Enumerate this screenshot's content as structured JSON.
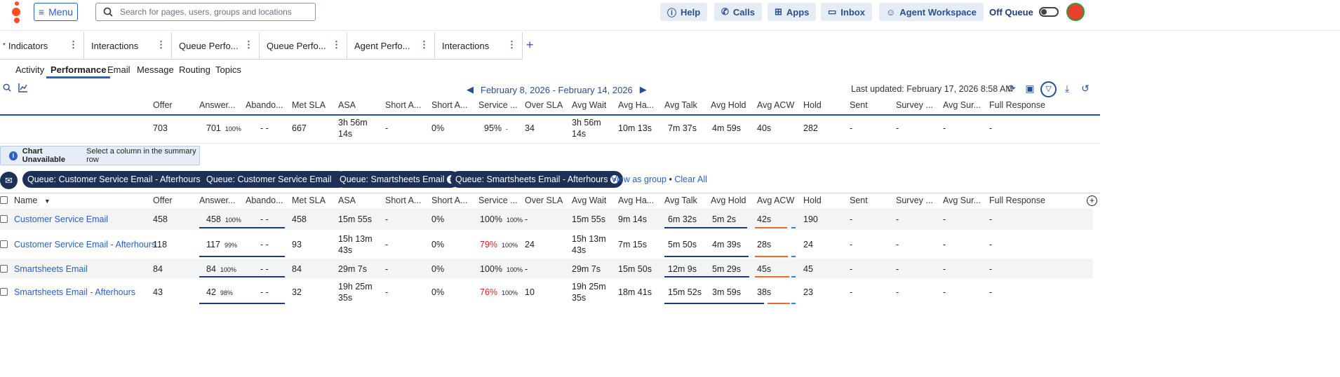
{
  "topbar": {
    "menu_label": "Menu",
    "search_placeholder": "Search for pages, users, groups and locations",
    "buttons": [
      {
        "label": "Help",
        "icon": "help-icon"
      },
      {
        "label": "Calls",
        "icon": "phone-icon"
      },
      {
        "label": "Apps",
        "icon": "apps-icon"
      },
      {
        "label": "Inbox",
        "icon": "inbox-icon"
      },
      {
        "label": "Agent Workspace",
        "icon": "agent-icon"
      }
    ],
    "off_queue_label": "Off Queue"
  },
  "tabs": [
    {
      "label": "Indicators",
      "starred": true
    },
    {
      "label": "Interactions"
    },
    {
      "label": "Queue Perfo..."
    },
    {
      "label": "Queue Perfo..."
    },
    {
      "label": "Agent Perfo..."
    },
    {
      "label": "Interactions"
    }
  ],
  "subtabs": [
    "Activity",
    "Performance",
    "Email",
    "Message",
    "Routing",
    "Topics"
  ],
  "active_subtab": "Performance",
  "date_range": "February 8, 2026 - February 14, 2026",
  "last_updated": "Last updated: February 17, 2026 8:58 AM",
  "columns": [
    "Offer",
    "Answer...",
    "Abando...",
    "Met SLA",
    "ASA",
    "Short A...",
    "Short A...",
    "Service ...",
    "Over SLA",
    "Avg Wait",
    "Avg Ha...",
    "Avg Talk",
    "Avg Hold",
    "Avg ACW",
    "Hold",
    "Sent",
    "Survey ...",
    "Avg Sur...",
    "Full Response"
  ],
  "summary": {
    "offer": "703",
    "answered": "701",
    "answered_pct": "100%",
    "abandoned": "- -",
    "met_sla": "667",
    "asa": "3h 56m 14s",
    "short_a1": "-",
    "short_a2": "0%",
    "service": "95%",
    "service_pct": "-",
    "over_sla": "34",
    "avg_wait": "3h 56m 14s",
    "avg_handle": "10m 13s",
    "avg_talk": "7m 37s",
    "avg_hold": "4m 59s",
    "avg_acw": "40s",
    "hold": "282",
    "sent": "-",
    "survey": "-",
    "avg_survey": "-",
    "full_response": "-"
  },
  "chart_notice": {
    "title": "Chart Unavailable",
    "text": "Select a column in the summary row"
  },
  "filters": [
    "Queue: Customer Service Email - Afterhours",
    "Queue: Customer Service Email",
    "Queue: Smartsheets Email",
    "Queue: Smartsheets Email - Afterhours"
  ],
  "view_as_group": "View as group",
  "link_sep": "•",
  "clear_all": "Clear All",
  "name_header": "Name",
  "rows": [
    {
      "name": "Customer Service Email",
      "offer": "458",
      "answered": "458",
      "answered_pct": "100%",
      "abandoned": "- -",
      "met_sla": "458",
      "asa": "15m 55s",
      "short_a1": "-",
      "short_a2": "0%",
      "service": "100%",
      "service_pct": "100%",
      "service_red": false,
      "over_sla": "-",
      "avg_wait": "15m 55s",
      "avg_handle": "9m 14s",
      "avg_talk": "6m 32s",
      "avg_hold": "5m 2s",
      "avg_acw": "42s",
      "hold": "190",
      "sent": "-",
      "survey": "-",
      "avg_survey": "-",
      "full_response": "-"
    },
    {
      "name": "Customer Service Email - Afterhours",
      "offer": "118",
      "answered": "117",
      "answered_pct": "99%",
      "abandoned": "- -",
      "met_sla": "93",
      "asa": "15h 13m 43s",
      "short_a1": "-",
      "short_a2": "0%",
      "service": "79%",
      "service_pct": "100%",
      "service_red": true,
      "over_sla": "24",
      "avg_wait": "15h 13m 43s",
      "avg_handle": "7m 15s",
      "avg_talk": "5m 50s",
      "avg_hold": "4m 39s",
      "avg_acw": "28s",
      "hold": "24",
      "sent": "-",
      "survey": "-",
      "avg_survey": "-",
      "full_response": "-"
    },
    {
      "name": "Smartsheets Email",
      "offer": "84",
      "answered": "84",
      "answered_pct": "100%",
      "abandoned": "- -",
      "met_sla": "84",
      "asa": "29m 7s",
      "short_a1": "-",
      "short_a2": "0%",
      "service": "100%",
      "service_pct": "100%",
      "service_red": false,
      "over_sla": "-",
      "avg_wait": "29m 7s",
      "avg_handle": "15m 50s",
      "avg_talk": "12m 9s",
      "avg_hold": "5m 29s",
      "avg_acw": "45s",
      "hold": "45",
      "sent": "-",
      "survey": "-",
      "avg_survey": "-",
      "full_response": "-"
    },
    {
      "name": "Smartsheets Email - Afterhours",
      "offer": "43",
      "answered": "42",
      "answered_pct": "98%",
      "abandoned": "- -",
      "met_sla": "32",
      "asa": "19h 25m 35s",
      "short_a1": "-",
      "short_a2": "0%",
      "service": "76%",
      "service_pct": "100%",
      "service_red": true,
      "over_sla": "10",
      "avg_wait": "19h 25m 35s",
      "avg_handle": "18m 41s",
      "avg_talk": "15m 52s",
      "avg_hold": "3m 59s",
      "avg_acw": "38s",
      "hold": "23",
      "sent": "-",
      "survey": "-",
      "avg_survey": "-",
      "full_response": "-"
    }
  ]
}
